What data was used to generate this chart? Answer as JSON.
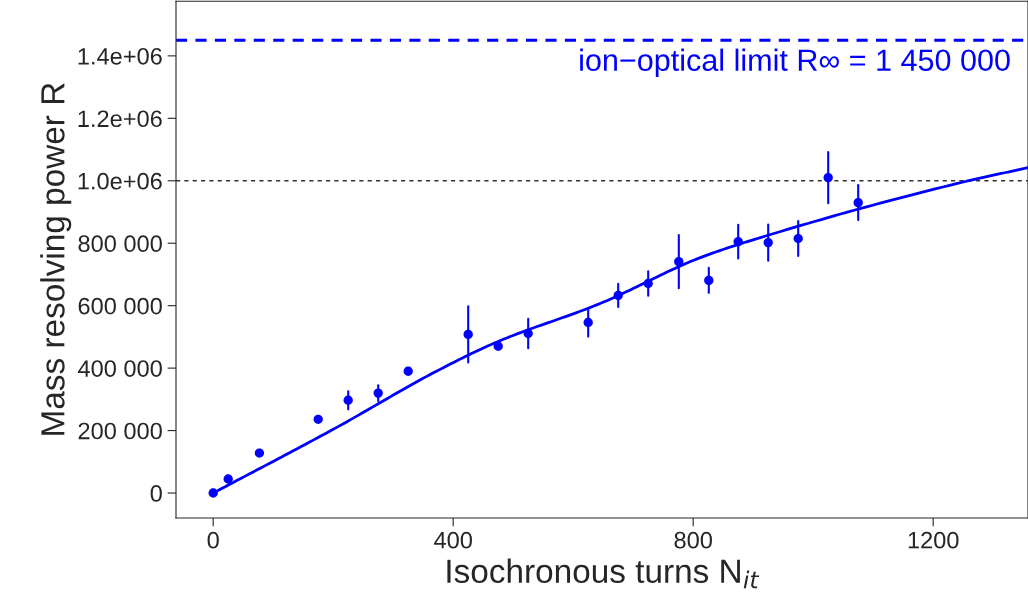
{
  "chart_data": {
    "type": "scatter",
    "xlabel": "Isochronous turns N$_{it}$",
    "ylabel": "Mass resolving power R",
    "xlim": [
      -62,
      1358
    ],
    "xticks": [
      0,
      400,
      800,
      1200
    ],
    "ylim": [
      -80000,
      1575000
    ],
    "yticks": [
      {
        "value": 0,
        "label": "0"
      },
      {
        "value": 200000,
        "label": "200 000"
      },
      {
        "value": 400000,
        "label": "400 000"
      },
      {
        "value": 600000,
        "label": "600 000"
      },
      {
        "value": 800000,
        "label": "800 000"
      },
      {
        "value": 1000000,
        "label": "1.0e+06"
      },
      {
        "value": 1200000,
        "label": "1.2e+06"
      },
      {
        "value": 1400000,
        "label": "1.4e+06"
      }
    ],
    "grid": false,
    "marker": "circle",
    "series": [
      {
        "color": "#0000ff",
        "x": [
          0,
          25,
          77,
          175,
          225,
          275,
          325,
          425,
          475,
          525,
          625,
          675,
          725,
          776,
          826,
          875,
          925,
          975,
          1025,
          1075
        ],
        "values": [
          0,
          45000,
          128000,
          236000,
          297000,
          320000,
          390000,
          508000,
          470000,
          511000,
          546000,
          633000,
          671000,
          741000,
          681000,
          805000,
          802000,
          815000,
          1010000,
          930000
        ],
        "errors": [
          null,
          null,
          null,
          null,
          29000,
          25000,
          null,
          90000,
          null,
          47000,
          45000,
          37000,
          39000,
          85000,
          40000,
          54000,
          58000,
          56000,
          82000,
          56000
        ]
      },
      {
        "type": "line",
        "marker": "none",
        "color": "#0000ff",
        "line_style": "solid",
        "x": [
          0,
          200,
          378,
          472,
          645,
          812,
          912,
          1250,
          1358
        ],
        "values": [
          0,
          204000,
          396000,
          483000,
          607000,
          754000,
          818000,
          996000,
          1042000
        ]
      }
    ],
    "ref_lines": [
      {
        "axis": "y",
        "value": 1000000,
        "color": "#333333",
        "line_style": "dotted"
      },
      {
        "axis": "y",
        "value": 1450000,
        "color": "#0000ff",
        "line_style": "dashed",
        "label": "ion−optical limit R∞ = 1 450 000"
      }
    ]
  }
}
